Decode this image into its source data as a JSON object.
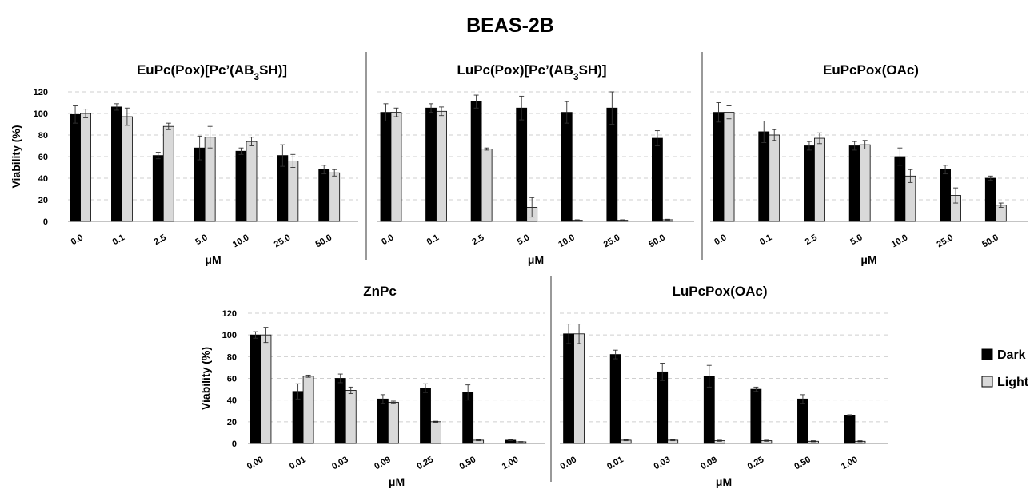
{
  "figure": {
    "title": "BEAS-2B",
    "legend": {
      "placement": "right",
      "entries": [
        {
          "name": "Dark",
          "color": "#000000"
        },
        {
          "name": "Light",
          "color": "#d9d9d9"
        }
      ]
    }
  },
  "chart_data": [
    {
      "type": "bar",
      "title_parts": [
        [
          "EuPc(Pox)[Pc’(AB",
          false
        ],
        [
          "3",
          true
        ],
        [
          "SH)]",
          false
        ]
      ],
      "xlabel": "μM",
      "ylabel": "Viability (%)",
      "ylim": [
        0,
        120
      ],
      "yticks": [
        0,
        20,
        40,
        60,
        80,
        100,
        120
      ],
      "grid": true,
      "categories": [
        "0.0",
        "0.1",
        "2.5",
        "5.0",
        "10.0",
        "25.0",
        "50.0"
      ],
      "series": [
        {
          "name": "Dark",
          "color": "#000000",
          "values": [
            99,
            106,
            61,
            68,
            65,
            61,
            48
          ],
          "errors": [
            8,
            3,
            3,
            11,
            3,
            10,
            4
          ]
        },
        {
          "name": "Light",
          "color": "#d9d9d9",
          "values": [
            100,
            97,
            88,
            78,
            74,
            56,
            45
          ],
          "errors": [
            4,
            8,
            3,
            10,
            4,
            6,
            3
          ]
        }
      ]
    },
    {
      "type": "bar",
      "title_parts": [
        [
          "LuPc(Pox)[Pc’(AB",
          false
        ],
        [
          "3",
          true
        ],
        [
          "SH)]",
          false
        ]
      ],
      "xlabel": "μM",
      "ylabel": "",
      "ylim": [
        0,
        120
      ],
      "yticks": [
        0,
        20,
        40,
        60,
        80,
        100,
        120
      ],
      "grid": true,
      "categories": [
        "0.0",
        "0.1",
        "2.5",
        "5.0",
        "10.0",
        "25.0",
        "50.0"
      ],
      "series": [
        {
          "name": "Dark",
          "color": "#000000",
          "values": [
            101,
            105,
            111,
            105,
            101,
            105,
            77
          ],
          "errors": [
            8,
            4,
            6,
            11,
            10,
            15,
            7
          ]
        },
        {
          "name": "Light",
          "color": "#d9d9d9",
          "values": [
            101,
            102,
            67,
            13,
            1,
            1,
            1.5
          ],
          "errors": [
            4,
            4,
            1,
            9,
            0.5,
            0.5,
            0.5
          ]
        }
      ]
    },
    {
      "type": "bar",
      "title_parts": [
        [
          "EuPcPox(OAc)",
          false
        ]
      ],
      "xlabel": "μM",
      "ylabel": "",
      "ylim": [
        0,
        120
      ],
      "yticks": [
        0,
        20,
        40,
        60,
        80,
        100,
        120
      ],
      "grid": true,
      "categories": [
        "0.0",
        "0.1",
        "2.5",
        "5.0",
        "10.0",
        "25.0",
        "50.0"
      ],
      "series": [
        {
          "name": "Dark",
          "color": "#000000",
          "values": [
            101,
            83,
            70,
            70,
            60,
            48,
            40
          ],
          "errors": [
            9,
            10,
            4,
            4,
            8,
            4,
            2
          ]
        },
        {
          "name": "Light",
          "color": "#d9d9d9",
          "values": [
            101,
            80,
            77,
            71,
            42,
            24,
            15
          ],
          "errors": [
            6,
            5,
            5,
            4,
            6,
            7,
            2
          ]
        }
      ]
    },
    {
      "type": "bar",
      "title_parts": [
        [
          "ZnPc",
          false
        ]
      ],
      "xlabel": "μM",
      "ylabel": "Viability (%)",
      "ylim": [
        0,
        120
      ],
      "yticks": [
        0,
        20,
        40,
        60,
        80,
        100,
        120
      ],
      "grid": true,
      "categories": [
        "0.00",
        "0.01",
        "0.03",
        "0.09",
        "0.25",
        "0.50",
        "1.00"
      ],
      "series": [
        {
          "name": "Dark",
          "color": "#000000",
          "values": [
            100,
            48,
            60,
            41,
            51,
            47,
            3
          ],
          "errors": [
            3,
            7,
            4,
            4,
            4,
            7,
            0.5
          ]
        },
        {
          "name": "Light",
          "color": "#d9d9d9",
          "values": [
            100,
            62,
            49,
            38,
            20,
            3,
            1.5
          ],
          "errors": [
            7,
            1,
            3,
            1,
            0.5,
            0.5,
            0.3
          ]
        }
      ]
    },
    {
      "type": "bar",
      "title_parts": [
        [
          "LuPcPox(OAc)",
          false
        ]
      ],
      "xlabel": "μM",
      "ylabel": "",
      "ylim": [
        0,
        120
      ],
      "yticks": [
        0,
        20,
        40,
        60,
        80,
        100,
        120
      ],
      "grid": true,
      "categories": [
        "0.00",
        "0.01",
        "0.03",
        "0.09",
        "0.25",
        "0.50",
        "1.00"
      ],
      "series": [
        {
          "name": "Dark",
          "color": "#000000",
          "values": [
            101,
            82,
            66,
            62,
            50,
            41,
            26
          ],
          "errors": [
            9,
            4,
            8,
            10,
            2,
            4,
            0.5
          ]
        },
        {
          "name": "Light",
          "color": "#d9d9d9",
          "values": [
            101,
            3,
            3,
            2.5,
            2.5,
            2,
            2
          ],
          "errors": [
            9,
            0.5,
            0.5,
            0.5,
            0.5,
            0.5,
            0.5
          ]
        }
      ]
    }
  ]
}
